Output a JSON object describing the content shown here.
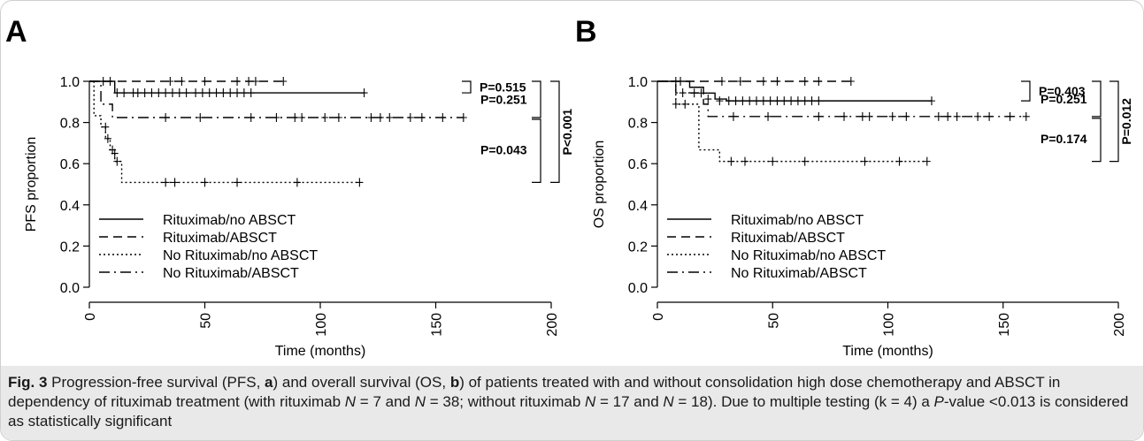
{
  "chart_data": [
    {
      "type": "line",
      "panel": "A",
      "ylabel": "PFS proportion",
      "xlabel": "Time (months)",
      "xlim": [
        0,
        200
      ],
      "ylim": [
        0,
        1
      ],
      "xticks": [
        "0",
        "50",
        "100",
        "150",
        "200"
      ],
      "yticks": [
        "0.0",
        "0.2",
        "0.4",
        "0.6",
        "0.8",
        "1.0"
      ],
      "legend_position": "bottom-left",
      "series": [
        {
          "name": "Rituximab/no ABSCT",
          "style": "solid",
          "steps": [
            [
              0,
              1.0
            ],
            [
              11,
              0.944
            ],
            [
              119,
              0.944
            ]
          ],
          "censors": [
            [
              12,
              0.944
            ],
            [
              15,
              0.944
            ],
            [
              19,
              0.944
            ],
            [
              21,
              0.944
            ],
            [
              24,
              0.944
            ],
            [
              27,
              0.944
            ],
            [
              30,
              0.944
            ],
            [
              33,
              0.944
            ],
            [
              36,
              0.944
            ],
            [
              39,
              0.944
            ],
            [
              42,
              0.944
            ],
            [
              46,
              0.944
            ],
            [
              49,
              0.944
            ],
            [
              52,
              0.944
            ],
            [
              55,
              0.944
            ],
            [
              58,
              0.944
            ],
            [
              61,
              0.944
            ],
            [
              64,
              0.944
            ],
            [
              67,
              0.944
            ],
            [
              70,
              0.944
            ],
            [
              119,
              0.944
            ]
          ]
        },
        {
          "name": "Rituximab/ABSCT",
          "style": "dashed",
          "steps": [
            [
              0,
              1.0
            ],
            [
              84,
              1.0
            ]
          ],
          "censors": [
            [
              6,
              1.0
            ],
            [
              9,
              1.0
            ],
            [
              35,
              1.0
            ],
            [
              40,
              1.0
            ],
            [
              50,
              1.0
            ],
            [
              64,
              1.0
            ],
            [
              69,
              1.0
            ],
            [
              72,
              1.0
            ],
            [
              84,
              1.0
            ]
          ]
        },
        {
          "name": "No Rituximab/no ABSCT",
          "style": "dotted",
          "steps": [
            [
              0,
              1.0
            ],
            [
              2,
              0.833
            ],
            [
              5,
              0.778
            ],
            [
              7,
              0.722
            ],
            [
              9,
              0.667
            ],
            [
              11,
              0.611
            ],
            [
              14,
              0.509
            ],
            [
              117,
              0.509
            ]
          ],
          "censors": [
            [
              7,
              0.778
            ],
            [
              8,
              0.722
            ],
            [
              10,
              0.667
            ],
            [
              11,
              0.65
            ],
            [
              12,
              0.611
            ],
            [
              33,
              0.509
            ],
            [
              37,
              0.509
            ],
            [
              50,
              0.509
            ],
            [
              64,
              0.509
            ],
            [
              90,
              0.509
            ],
            [
              117,
              0.509
            ]
          ]
        },
        {
          "name": "No Rituximab/ABSCT",
          "style": "dashdot",
          "steps": [
            [
              0,
              1.0
            ],
            [
              5,
              0.889
            ],
            [
              10,
              0.824
            ],
            [
              162,
              0.824
            ]
          ],
          "censors": [
            [
              33,
              0.824
            ],
            [
              48,
              0.824
            ],
            [
              70,
              0.824
            ],
            [
              81,
              0.824
            ],
            [
              89,
              0.824
            ],
            [
              92,
              0.824
            ],
            [
              102,
              0.824
            ],
            [
              108,
              0.824
            ],
            [
              122,
              0.824
            ],
            [
              126,
              0.824
            ],
            [
              130,
              0.824
            ],
            [
              139,
              0.824
            ],
            [
              144,
              0.824
            ],
            [
              153,
              0.824
            ],
            [
              162,
              0.824
            ]
          ]
        }
      ],
      "pvalues": [
        {
          "label": "P=0.515",
          "from_series": "Rituximab/ABSCT",
          "to_series": "Rituximab/no ABSCT"
        },
        {
          "label": "P=0.251",
          "from_series": "Rituximab/ABSCT",
          "to_series": "No Rituximab/ABSCT"
        },
        {
          "label": "P=0.043",
          "from_series": "No Rituximab/ABSCT",
          "to_series": "No Rituximab/no ABSCT"
        },
        {
          "label": "P<0.001",
          "from_series": "Rituximab/ABSCT",
          "to_series": "No Rituximab/no ABSCT"
        }
      ]
    },
    {
      "type": "line",
      "panel": "B",
      "ylabel": "OS proportion",
      "xlabel": "Time (months)",
      "xlim": [
        0,
        200
      ],
      "ylim": [
        0,
        1
      ],
      "xticks": [
        "0",
        "50",
        "100",
        "150",
        "200"
      ],
      "yticks": [
        "0.0",
        "0.2",
        "0.4",
        "0.6",
        "0.8",
        "1.0"
      ],
      "legend_position": "bottom-left",
      "series": [
        {
          "name": "Rituximab/no ABSCT",
          "style": "solid",
          "steps": [
            [
              0,
              1.0
            ],
            [
              14,
              0.971
            ],
            [
              20,
              0.943
            ],
            [
              25,
              0.914
            ],
            [
              30,
              0.905
            ],
            [
              119,
              0.905
            ]
          ],
          "censors": [
            [
              16,
              0.943
            ],
            [
              19,
              0.943
            ],
            [
              22,
              0.914
            ],
            [
              27,
              0.905
            ],
            [
              31,
              0.905
            ],
            [
              34,
              0.905
            ],
            [
              37,
              0.905
            ],
            [
              40,
              0.905
            ],
            [
              43,
              0.905
            ],
            [
              46,
              0.905
            ],
            [
              49,
              0.905
            ],
            [
              52,
              0.905
            ],
            [
              55,
              0.905
            ],
            [
              58,
              0.905
            ],
            [
              61,
              0.905
            ],
            [
              64,
              0.905
            ],
            [
              67,
              0.905
            ],
            [
              70,
              0.905
            ],
            [
              119,
              0.905
            ]
          ]
        },
        {
          "name": "Rituximab/ABSCT",
          "style": "dashed",
          "steps": [
            [
              0,
              1.0
            ],
            [
              84,
              1.0
            ]
          ],
          "censors": [
            [
              8,
              1.0
            ],
            [
              10,
              1.0
            ],
            [
              28,
              1.0
            ],
            [
              36,
              1.0
            ],
            [
              46,
              1.0
            ],
            [
              52,
              1.0
            ],
            [
              64,
              1.0
            ],
            [
              70,
              1.0
            ],
            [
              84,
              1.0
            ]
          ]
        },
        {
          "name": "No Rituximab/no ABSCT",
          "style": "dotted",
          "steps": [
            [
              0,
              1.0
            ],
            [
              8,
              0.889
            ],
            [
              18,
              0.667
            ],
            [
              27,
              0.611
            ],
            [
              117,
              0.611
            ]
          ],
          "censors": [
            [
              8,
              0.889
            ],
            [
              12,
              0.889
            ],
            [
              32,
              0.611
            ],
            [
              38,
              0.611
            ],
            [
              50,
              0.611
            ],
            [
              64,
              0.611
            ],
            [
              90,
              0.611
            ],
            [
              105,
              0.611
            ],
            [
              117,
              0.611
            ]
          ]
        },
        {
          "name": "No Rituximab/ABSCT",
          "style": "dashdot",
          "steps": [
            [
              0,
              1.0
            ],
            [
              8,
              0.944
            ],
            [
              20,
              0.889
            ],
            [
              22,
              0.829
            ],
            [
              160,
              0.829
            ]
          ],
          "censors": [
            [
              11,
              0.944
            ],
            [
              33,
              0.829
            ],
            [
              48,
              0.829
            ],
            [
              70,
              0.829
            ],
            [
              81,
              0.829
            ],
            [
              89,
              0.829
            ],
            [
              92,
              0.829
            ],
            [
              102,
              0.829
            ],
            [
              108,
              0.829
            ],
            [
              122,
              0.829
            ],
            [
              126,
              0.829
            ],
            [
              130,
              0.829
            ],
            [
              139,
              0.829
            ],
            [
              144,
              0.829
            ],
            [
              153,
              0.829
            ],
            [
              160,
              0.829
            ]
          ]
        }
      ],
      "pvalues": [
        {
          "label": "P=0.403",
          "from_series": "Rituximab/ABSCT",
          "to_series": "Rituximab/no ABSCT"
        },
        {
          "label": "P=0.251",
          "from_series": "Rituximab/ABSCT",
          "to_series": "No Rituximab/ABSCT"
        },
        {
          "label": "P=0.174",
          "from_series": "No Rituximab/ABSCT",
          "to_series": "No Rituximab/no ABSCT"
        },
        {
          "label": "P=0.012",
          "from_series": "Rituximab/ABSCT",
          "to_series": "No Rituximab/no ABSCT"
        }
      ]
    }
  ],
  "caption": {
    "label": "Fig. 3",
    "parts": [
      {
        "t": " Progression-free survival (PFS, "
      },
      {
        "t": "a",
        "b": true
      },
      {
        "t": ") and overall survival (OS, "
      },
      {
        "t": "b",
        "b": true
      },
      {
        "t": ") of patients treated with and without consolidation high dose chemotherapy and ABSCT in dependency of rituximab treatment (with rituximab "
      },
      {
        "t": "N",
        "i": true
      },
      {
        "t": " = 7 and "
      },
      {
        "t": "N",
        "i": true
      },
      {
        "t": " = 38; without rituximab "
      },
      {
        "t": "N",
        "i": true
      },
      {
        "t": " = 17 and "
      },
      {
        "t": "N",
        "i": true
      },
      {
        "t": " = 18). Due to multiple testing (k = 4) a "
      },
      {
        "t": "P",
        "i": true
      },
      {
        "t": "-value <0.013 is considered as statistically significant"
      }
    ]
  }
}
